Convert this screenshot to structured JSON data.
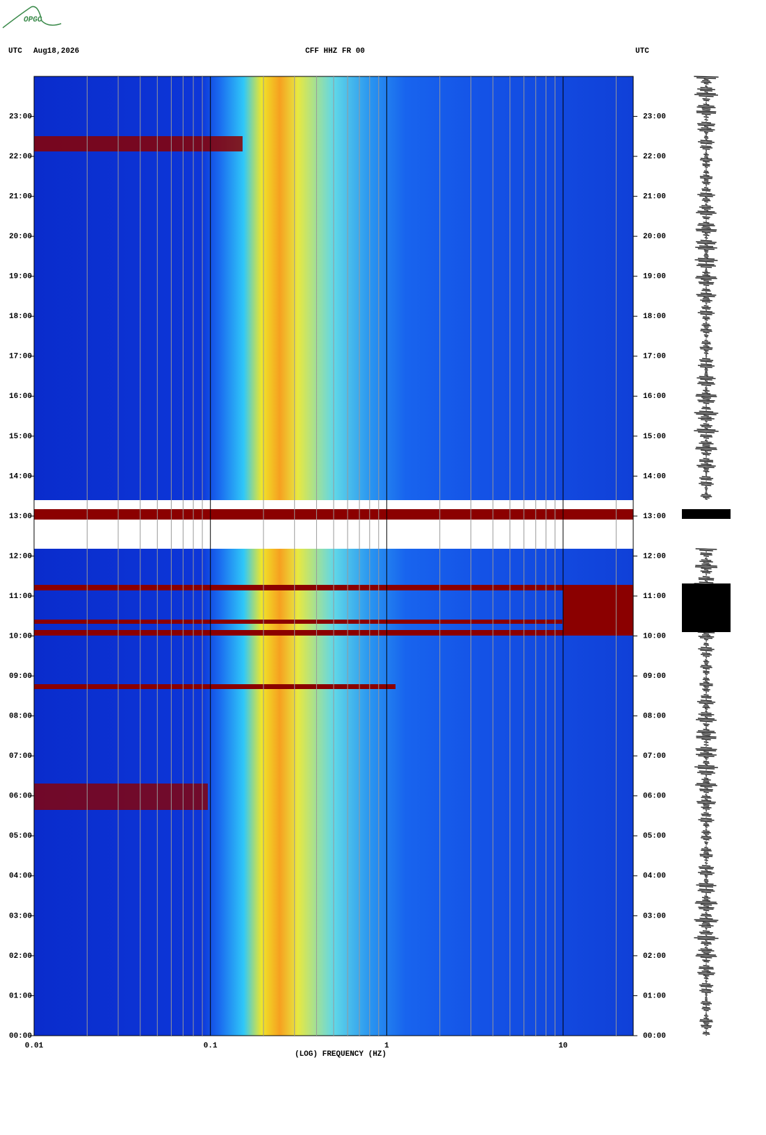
{
  "logo": "OPGC",
  "chart_data": {
    "type": "spectrogram",
    "y_axis_label": "UTC",
    "date": "Aug18,2026",
    "title": "CFF HHZ FR 00",
    "right_axis_label": "UTC",
    "xlabel": "(LOG) FREQUENCY (HZ)",
    "xscale": "log",
    "xlim": [
      0.01,
      25
    ],
    "xticks": [
      0.01,
      0.1,
      1,
      10
    ],
    "xminorticks": [
      0.02,
      0.03,
      0.04,
      0.05,
      0.06,
      0.07,
      0.08,
      0.09,
      0.2,
      0.3,
      0.4,
      0.5,
      0.6,
      0.7,
      0.8,
      0.9,
      2,
      3,
      4,
      5,
      6,
      7,
      8,
      9,
      20
    ],
    "ylim": [
      0,
      24
    ],
    "yticks": [
      {
        "value": 0,
        "label": "00:00"
      },
      {
        "value": 1,
        "label": "01:00"
      },
      {
        "value": 2,
        "label": "02:00"
      },
      {
        "value": 3,
        "label": "03:00"
      },
      {
        "value": 4,
        "label": "04:00"
      },
      {
        "value": 5,
        "label": "05:00"
      },
      {
        "value": 6,
        "label": "06:00"
      },
      {
        "value": 7,
        "label": "07:00"
      },
      {
        "value": 8,
        "label": "08:00"
      },
      {
        "value": 9,
        "label": "09:00"
      },
      {
        "value": 10,
        "label": "10:00"
      },
      {
        "value": 11,
        "label": "11:00"
      },
      {
        "value": 12,
        "label": "12:00"
      },
      {
        "value": 13,
        "label": "13:00"
      },
      {
        "value": 14,
        "label": "14:00"
      },
      {
        "value": 15,
        "label": "15:00"
      },
      {
        "value": 16,
        "label": "16:00"
      },
      {
        "value": 17,
        "label": "17:00"
      },
      {
        "value": 18,
        "label": "18:00"
      },
      {
        "value": 19,
        "label": "19:00"
      },
      {
        "value": 20,
        "label": "20:00"
      },
      {
        "value": 21,
        "label": "21:00"
      },
      {
        "value": 22,
        "label": "22:00"
      },
      {
        "value": 23,
        "label": "23:00"
      }
    ]
  }
}
